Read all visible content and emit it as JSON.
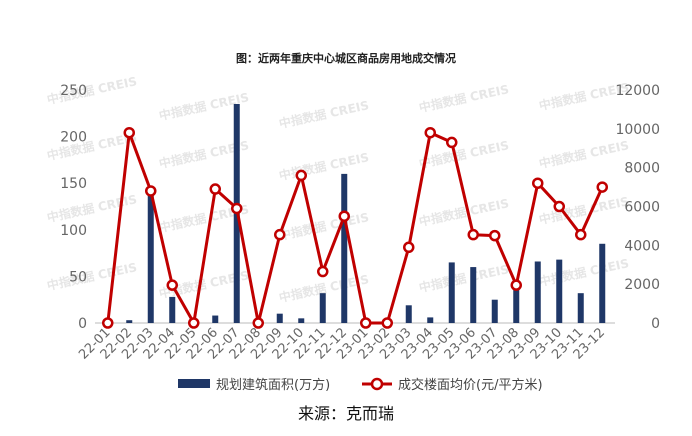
{
  "chart_data": {
    "type": "bar",
    "title": "图：近两年重庆中心城区商品房用地成交情况",
    "categories": [
      "22-01",
      "22-02",
      "22-03",
      "22-04",
      "22-05",
      "22-06",
      "22-07",
      "22-08",
      "22-09",
      "22-10",
      "22-11",
      "22-12",
      "23-01",
      "23-02",
      "23-03",
      "23-04",
      "23-05",
      "23-06",
      "23-07",
      "23-08",
      "23-09",
      "23-10",
      "23-11",
      "23-12"
    ],
    "series": [
      {
        "name": "规划建筑面积(万方)",
        "type": "bar",
        "axis": "left",
        "color": "#1f3767",
        "values": [
          0,
          3,
          145,
          28,
          0,
          8,
          235,
          0,
          10,
          5,
          32,
          160,
          0,
          0,
          19,
          6,
          65,
          60,
          25,
          42,
          66,
          68,
          32,
          85
        ]
      },
      {
        "name": "成交楼面均价(元/平方米)",
        "type": "line",
        "axis": "right",
        "color": "#c00000",
        "values": [
          0,
          9800,
          6800,
          1950,
          0,
          6900,
          5900,
          0,
          4550,
          7600,
          2650,
          5500,
          0,
          0,
          3900,
          9800,
          9300,
          4550,
          4500,
          1950,
          7200,
          6000,
          4550,
          7000
        ]
      }
    ],
    "yleft": {
      "min": 0,
      "max": 250,
      "ticks": [
        0,
        50,
        100,
        150,
        200,
        250
      ]
    },
    "yright": {
      "min": 0,
      "max": 12000,
      "ticks": [
        0,
        2000,
        4000,
        6000,
        8000,
        10000,
        12000
      ]
    },
    "legend": "bottom",
    "grid": false
  },
  "watermark": "中指数据 CREIS",
  "source": "来源：克而瑞"
}
